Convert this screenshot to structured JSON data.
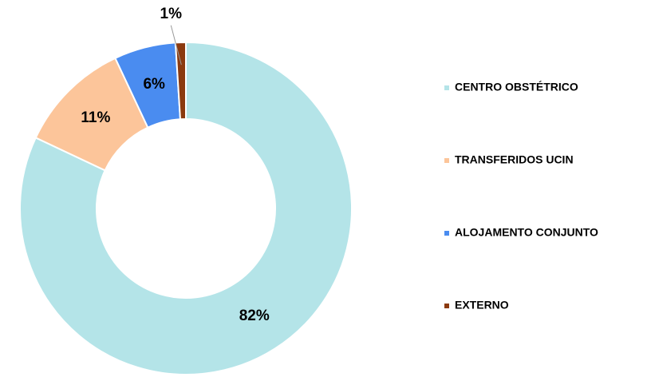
{
  "chart_data": {
    "type": "pie",
    "categories": [
      "CENTRO OBSTÉTRICO",
      "TRANSFERIDOS UCIN",
      "ALOJAMENTO CONJUNTO",
      "EXTERNO"
    ],
    "values": [
      82,
      11,
      6,
      1
    ],
    "value_labels": [
      "82%",
      "11%",
      "6%",
      "1%"
    ],
    "colors": [
      "#b4e4e8",
      "#fcc59a",
      "#4a8cf0",
      "#8b3a0f"
    ],
    "donut": true,
    "legend": "right"
  }
}
